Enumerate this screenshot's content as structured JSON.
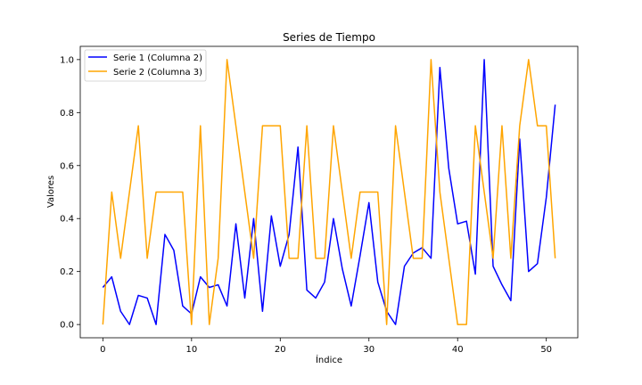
{
  "chart_data": {
    "type": "line",
    "title": "Series de Tiempo",
    "xlabel": "Índice",
    "ylabel": "Valores",
    "xlim": [
      -2.55,
      53.55
    ],
    "ylim": [
      -0.05,
      1.05
    ],
    "xticks": [
      0,
      10,
      20,
      30,
      40,
      50
    ],
    "yticks": [
      0.0,
      0.2,
      0.4,
      0.6,
      0.8,
      1.0
    ],
    "xtick_labels": [
      "0",
      "10",
      "20",
      "30",
      "40",
      "50"
    ],
    "ytick_labels": [
      "0.0",
      "0.2",
      "0.4",
      "0.6",
      "0.8",
      "1.0"
    ],
    "grid": false,
    "legend_position": "top-left",
    "x": [
      0,
      1,
      2,
      3,
      4,
      5,
      6,
      7,
      8,
      9,
      10,
      11,
      12,
      13,
      14,
      15,
      16,
      17,
      18,
      19,
      20,
      21,
      22,
      23,
      24,
      25,
      26,
      27,
      28,
      29,
      30,
      31,
      32,
      33,
      34,
      35,
      36,
      37,
      38,
      39,
      40,
      41,
      42,
      43,
      44,
      45,
      46,
      47,
      48,
      49,
      50,
      51
    ],
    "series": [
      {
        "name": "Serie 1 (Columna 2)",
        "color": "#0000ff",
        "values": [
          0.14,
          0.18,
          0.05,
          0.0,
          0.11,
          0.1,
          0.0,
          0.34,
          0.28,
          0.07,
          0.04,
          0.18,
          0.14,
          0.15,
          0.07,
          0.38,
          0.1,
          0.4,
          0.05,
          0.41,
          0.22,
          0.34,
          0.67,
          0.13,
          0.1,
          0.16,
          0.4,
          0.21,
          0.07,
          0.26,
          0.46,
          0.16,
          0.05,
          0.0,
          0.22,
          0.27,
          0.29,
          0.25,
          0.97,
          0.59,
          0.38,
          0.39,
          0.19,
          1.0,
          0.22,
          0.15,
          0.09,
          0.7,
          0.2,
          0.23,
          0.48,
          0.83
        ]
      },
      {
        "name": "Serie 2 (Columna 3)",
        "color": "#ffa500",
        "values": [
          0.0,
          0.5,
          0.25,
          0.5,
          0.75,
          0.25,
          0.5,
          0.5,
          0.5,
          0.5,
          0.0,
          0.75,
          0.0,
          0.25,
          1.0,
          0.75,
          0.5,
          0.25,
          0.75,
          0.75,
          0.75,
          0.25,
          0.25,
          0.75,
          0.25,
          0.25,
          0.75,
          0.5,
          0.25,
          0.5,
          0.5,
          0.5,
          0.0,
          0.75,
          0.5,
          0.25,
          0.25,
          1.0,
          0.5,
          0.25,
          0.0,
          0.0,
          0.75,
          0.5,
          0.25,
          0.75,
          0.25,
          0.75,
          1.0,
          0.75,
          0.75,
          0.25
        ]
      }
    ]
  }
}
